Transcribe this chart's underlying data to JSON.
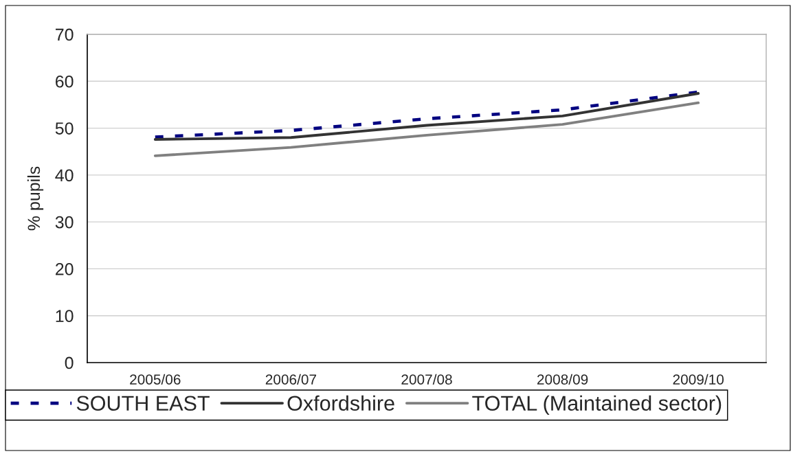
{
  "chart_data": {
    "type": "line",
    "ylabel": "% pupils",
    "categories": [
      "2005/06",
      "2006/07",
      "2007/08",
      "2008/09",
      "2009/10"
    ],
    "series": [
      {
        "name": "SOUTH EAST",
        "color": "#000080",
        "line_style": "dashed",
        "values": [
          48.1,
          49.5,
          52.0,
          53.9,
          57.7
        ]
      },
      {
        "name": "Oxfordshire",
        "color": "#333333",
        "line_style": "solid",
        "values": [
          47.6,
          48.0,
          50.6,
          52.6,
          57.4
        ]
      },
      {
        "name": "TOTAL (Maintained sector)",
        "color": "#808080",
        "line_style": "solid",
        "values": [
          44.1,
          45.9,
          48.5,
          50.8,
          55.4
        ]
      }
    ],
    "ylim": [
      0,
      70
    ],
    "yticks": [
      0,
      10,
      20,
      30,
      40,
      50,
      60,
      70
    ],
    "grid": "y",
    "legend": "bottom"
  }
}
